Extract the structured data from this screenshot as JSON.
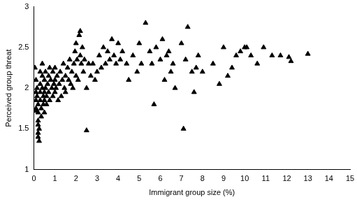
{
  "chart_data": {
    "type": "scatter",
    "x_label": "Immigrant group size (%)",
    "y_label": "Perceived group threat",
    "color": "#000000",
    "marker": "triangle",
    "grid": false,
    "xlim": [
      0,
      15
    ],
    "ylim": [
      1,
      3
    ],
    "xticks": [
      0,
      1,
      2,
      3,
      4,
      5,
      6,
      7,
      8,
      9,
      10,
      11,
      12,
      13,
      14,
      15
    ],
    "yticks": [
      1,
      1.5,
      2,
      2.5,
      3
    ],
    "x": [
      0.05,
      0.1,
      0.1,
      0.1,
      0.1,
      0.1,
      0.15,
      0.15,
      0.2,
      0.2,
      0.2,
      0.2,
      0.2,
      0.2,
      0.25,
      0.25,
      0.3,
      0.3,
      0.3,
      0.3,
      0.35,
      0.35,
      0.4,
      0.4,
      0.4,
      0.45,
      0.45,
      0.5,
      0.5,
      0.5,
      0.5,
      0.55,
      0.55,
      0.6,
      0.6,
      0.65,
      0.7,
      0.7,
      0.75,
      0.75,
      0.8,
      0.85,
      0.9,
      0.9,
      0.95,
      1.0,
      1.0,
      1.0,
      1.05,
      1.1,
      1.15,
      1.2,
      1.25,
      1.3,
      1.35,
      1.4,
      1.45,
      1.5,
      1.5,
      1.6,
      1.65,
      1.7,
      1.75,
      1.8,
      1.85,
      1.9,
      1.95,
      2.0,
      2.0,
      2.05,
      2.1,
      2.15,
      2.2,
      2.2,
      2.25,
      2.3,
      2.35,
      2.4,
      2.5,
      2.5,
      2.6,
      2.7,
      2.8,
      2.9,
      3.0,
      3.1,
      3.2,
      3.3,
      3.4,
      3.5,
      3.6,
      3.7,
      3.8,
      3.9,
      4.0,
      4.1,
      4.2,
      4.4,
      4.5,
      4.7,
      4.9,
      5.0,
      5.1,
      5.3,
      5.5,
      5.6,
      5.7,
      5.8,
      6.0,
      6.1,
      6.2,
      6.3,
      6.4,
      6.5,
      6.6,
      6.7,
      7.0,
      7.1,
      7.2,
      7.3,
      7.5,
      7.6,
      7.7,
      7.8,
      8.0,
      8.5,
      8.8,
      9.0,
      9.2,
      9.4,
      9.6,
      9.8,
      10.0,
      10.1,
      10.3,
      10.6,
      10.9,
      11.3,
      11.7,
      12.1,
      12.2,
      13.0
    ],
    "values": [
      2.25,
      2.1,
      1.95,
      1.85,
      1.75,
      1.72,
      2.0,
      1.9,
      1.8,
      1.7,
      1.6,
      1.55,
      1.45,
      1.4,
      1.35,
      1.5,
      2.2,
      2.05,
      1.95,
      1.85,
      1.75,
      1.65,
      2.3,
      2.15,
      2.0,
      1.9,
      1.8,
      2.1,
      1.95,
      1.85,
      1.7,
      2.2,
      2.0,
      1.9,
      1.8,
      2.05,
      2.15,
      1.95,
      2.25,
      1.85,
      2.1,
      2.0,
      2.2,
      1.9,
      2.05,
      2.25,
      2.1,
      1.95,
      2.0,
      2.15,
      1.85,
      2.05,
      2.2,
      1.9,
      2.1,
      2.3,
      2.0,
      1.95,
      2.15,
      2.25,
      2.1,
      2.35,
      2.05,
      2.2,
      2.0,
      2.3,
      2.45,
      2.15,
      2.55,
      2.35,
      2.1,
      2.65,
      2.7,
      2.4,
      2.3,
      2.5,
      2.2,
      2.35,
      1.48,
      2.0,
      2.3,
      2.15,
      2.3,
      2.1,
      2.2,
      2.4,
      2.25,
      2.5,
      2.3,
      2.45,
      2.35,
      2.6,
      2.4,
      2.3,
      2.55,
      2.35,
      2.45,
      2.3,
      2.1,
      2.4,
      2.2,
      2.55,
      2.3,
      2.8,
      2.45,
      2.3,
      1.8,
      2.5,
      2.35,
      2.6,
      2.1,
      2.4,
      2.45,
      2.2,
      2.3,
      2.0,
      2.55,
      1.5,
      2.35,
      2.75,
      2.2,
      1.95,
      2.25,
      2.4,
      2.2,
      2.3,
      2.05,
      2.5,
      2.15,
      2.25,
      2.4,
      2.45,
      2.5,
      2.5,
      2.4,
      2.3,
      2.5,
      2.4,
      2.4,
      2.38,
      2.33,
      2.42
    ]
  }
}
